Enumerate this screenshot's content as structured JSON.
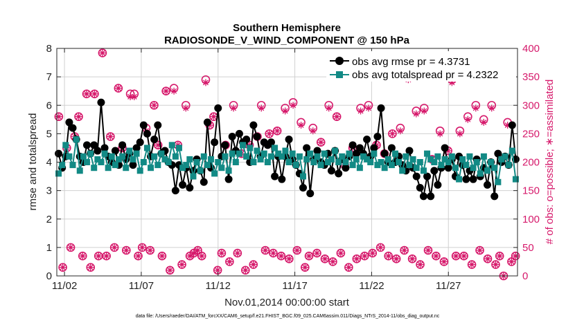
{
  "chart_data": {
    "type": "line",
    "title": "Southern Hemisphere",
    "subtitle": "RADIOSONDE_V_WIND_COMPONENT @ 150 hPa",
    "xlabel": "Nov.01,2014 00:00:00 start",
    "ylabel": "rmse and totalspread",
    "ylabel_right": "# of obs: o=possible; ∗=assimilated",
    "x_ticks": [
      "11/02",
      "11/07",
      "11/12",
      "11/17",
      "11/22",
      "11/27"
    ],
    "x_tick_positions_days": [
      1,
      6,
      11,
      16,
      21,
      26
    ],
    "xlim": [
      0.5,
      30.5
    ],
    "ylim": [
      0,
      8
    ],
    "y_ticks": [
      "0",
      "1",
      "2",
      "3",
      "4",
      "5",
      "6",
      "7",
      "8"
    ],
    "ylim_right": [
      0,
      400
    ],
    "y_ticks_right": [
      "0",
      "50",
      "100",
      "150",
      "200",
      "250",
      "300",
      "350",
      "400"
    ],
    "grid": true,
    "legend_position": "top-right",
    "footnote": "data file: /Users/raeder/DAI/ATM_forcXX/CAM6_setup/f.e21.FHIST_BGC.f09_025.CAM6assim.011/Diags_NTrS_2014-11/obs_diag_output.nc",
    "colors": {
      "rmse": "#000000",
      "totalspread": "#128a85",
      "obs_count": "#d6196b",
      "grid": "#d0d0d0"
    },
    "series": [
      {
        "name": "obs avg rmse pr = 4.3731",
        "axis": "left",
        "marker": "filled-circle",
        "values": [
          4.3,
          3.8,
          4.2,
          5.4,
          5.2,
          4.8,
          4.2,
          4.0,
          4.6,
          4.3,
          4.6,
          4.4,
          6.1,
          4.5,
          4.2,
          4.0,
          4.4,
          3.9,
          4.6,
          4.1,
          4.3,
          3.9,
          4.5,
          4.7,
          5.3,
          5.0,
          4.2,
          4.8,
          5.3,
          4.3,
          4.4,
          4.0,
          3.9,
          3.0,
          3.9,
          3.2,
          3.8,
          3.1,
          3.7,
          4.1,
          3.7,
          3.3,
          5.4,
          3.8,
          4.7,
          5.9,
          4.2,
          4.6,
          3.4,
          4.9,
          4.4,
          5.0,
          4.7,
          4.8,
          4.0,
          5.3,
          4.9,
          4.2,
          4.7,
          4.6,
          4.7,
          3.5,
          4.2,
          3.4,
          4.2,
          4.8,
          4.1,
          3.9,
          3.6,
          3.1,
          4.5,
          2.9,
          4.1,
          4.4,
          4.0,
          3.9,
          4.3,
          3.7,
          4.4,
          3.6,
          4.1,
          3.8,
          4.2,
          4.6,
          4.3,
          4.5,
          4.3,
          4.8,
          4.2,
          4.5,
          4.9,
          5.9,
          4.3,
          4.0,
          4.5,
          4.0,
          4.2,
          3.9,
          3.7,
          4.4,
          3.8,
          3.5,
          3.1,
          2.8,
          3.5,
          2.8,
          3.7,
          3.2,
          3.8,
          4.5,
          3.8,
          4.1,
          3.5,
          4.2,
          3.9,
          3.4,
          3.7,
          3.4,
          4.1,
          3.5,
          3.8,
          3.2,
          4.0,
          2.8,
          4.3,
          4.0,
          4.2,
          3.9,
          5.3,
          4.1
        ]
      },
      {
        "name": "obs avg totalspread pr = 4.2322",
        "axis": "left",
        "marker": "filled-square",
        "values": [
          3.6,
          3.9,
          4.6,
          4.2,
          3.9,
          4.8,
          3.7,
          4.2,
          4.0,
          4.3,
          3.8,
          4.1,
          4.0,
          4.3,
          3.8,
          4.2,
          3.9,
          4.1,
          4.2,
          3.8,
          4.4,
          4.1,
          4.3,
          3.7,
          4.0,
          4.5,
          3.8,
          4.2,
          3.9,
          4.3,
          4.1,
          4.0,
          4.6,
          4.2,
          4.5,
          3.8,
          3.9,
          4.1,
          3.5,
          4.0,
          3.7,
          4.2,
          3.9,
          4.1,
          3.6,
          4.0,
          3.8,
          4.2,
          3.7,
          4.3,
          4.0,
          4.3,
          4.6,
          4.2,
          4.5,
          4.0,
          4.4,
          4.1,
          4.3,
          4.0,
          4.2,
          4.5,
          4.3,
          4.2,
          4.4,
          4.0,
          4.3,
          3.9,
          4.2,
          3.5,
          4.1,
          4.3,
          4.0,
          4.2,
          3.9,
          4.3,
          4.0,
          4.1,
          4.4,
          4.0,
          4.2,
          4.0,
          4.3,
          3.9,
          4.1,
          3.8,
          4.2,
          4.1,
          4.0,
          4.3,
          3.9,
          4.0,
          3.8,
          4.1,
          3.9,
          4.3,
          4.0,
          3.7,
          4.2,
          3.9,
          4.1,
          3.8,
          4.0,
          3.7,
          4.3,
          4.1,
          4.0,
          4.2,
          3.9,
          4.1,
          4.0,
          4.2,
          3.8,
          3.4,
          4.1,
          3.9,
          4.2,
          3.8,
          4.0,
          3.6,
          4.2,
          3.7,
          4.0,
          3.8,
          3.3,
          4.1,
          4.2,
          3.9,
          4.4,
          3.4
        ]
      },
      {
        "name": "obs possible",
        "axis": "right",
        "marker": "open-circle",
        "values": [
          280,
          15,
          225,
          50,
          245,
          280,
          35,
          320,
          15,
          320,
          35,
          392,
          35,
          245,
          50,
          330,
          225,
          45,
          320,
          320,
          35,
          50,
          260,
          45,
          300,
          230,
          35,
          325,
          10,
          330,
          230,
          20,
          300,
          35,
          40,
          45,
          35,
          345,
          265,
          280,
          10,
          40,
          230,
          25,
          300,
          40,
          215,
          10,
          230,
          20,
          245,
          300,
          45,
          250,
          40,
          255,
          35,
          295,
          30,
          305,
          45,
          270,
          15,
          35,
          260,
          40,
          235,
          30,
          300,
          25,
          280,
          40,
          195,
          15,
          225,
          30,
          295,
          35,
          300,
          40,
          230,
          50,
          215,
          35,
          250,
          30,
          260,
          45,
          350,
          30,
          290,
          20,
          295,
          45,
          205,
          35,
          255,
          25,
          220,
          345,
          35,
          255,
          35,
          280,
          20,
          300,
          45,
          275,
          30,
          300,
          20,
          35,
          0,
          270,
          25,
          35
        ]
      },
      {
        "name": "obs assimilated",
        "axis": "right",
        "marker": "asterisk",
        "values": [
          280,
          15,
          225,
          50,
          245,
          280,
          35,
          320,
          15,
          320,
          35,
          392,
          35,
          245,
          50,
          330,
          225,
          45,
          315,
          315,
          35,
          50,
          255,
          45,
          300,
          230,
          35,
          325,
          10,
          325,
          230,
          20,
          295,
          35,
          40,
          45,
          35,
          340,
          265,
          280,
          10,
          40,
          230,
          25,
          295,
          40,
          215,
          10,
          230,
          20,
          245,
          295,
          45,
          250,
          40,
          255,
          35,
          290,
          30,
          300,
          45,
          265,
          15,
          35,
          255,
          40,
          235,
          30,
          295,
          25,
          280,
          40,
          195,
          15,
          225,
          30,
          290,
          35,
          295,
          40,
          230,
          50,
          215,
          35,
          250,
          30,
          255,
          45,
          345,
          30,
          285,
          20,
          290,
          45,
          205,
          35,
          250,
          25,
          220,
          340,
          35,
          250,
          35,
          275,
          20,
          295,
          45,
          270,
          30,
          295,
          20,
          35,
          0,
          265,
          25,
          35
        ]
      }
    ]
  }
}
